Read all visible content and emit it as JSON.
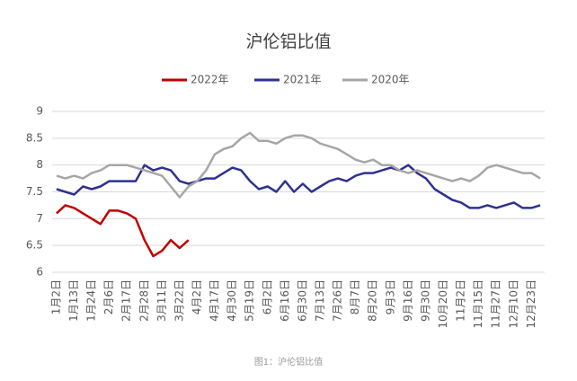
{
  "chart_data": {
    "type": "line",
    "title": "沪伦铝比值",
    "caption": "图1：沪伦铝比值",
    "categories": [
      "1月2日",
      null,
      "1月13日",
      null,
      "1月24日",
      null,
      "2月6日",
      null,
      "2月17日",
      null,
      "2月28日",
      null,
      "3月11日",
      null,
      "3月22日",
      null,
      "4月2日",
      null,
      "4月17日",
      null,
      "4月30日",
      null,
      "5月19日",
      null,
      "6月2日",
      null,
      "6月16日",
      null,
      "6月30日",
      null,
      "7月13日",
      null,
      "7月26日",
      null,
      "8月7日",
      null,
      "8月20日",
      null,
      "9月3日",
      null,
      "9月16日",
      null,
      "9月30日",
      null,
      "10月20日",
      null,
      "11月2日",
      null,
      "11月15日",
      null,
      "11月27日",
      null,
      "12月10日",
      null,
      "12月23日",
      null
    ],
    "series": [
      {
        "name": "2022年",
        "color": "#c00000",
        "values": [
          7.1,
          7.25,
          7.2,
          7.1,
          7.0,
          6.9,
          7.15,
          7.15,
          7.1,
          7.0,
          6.6,
          6.3,
          6.4,
          6.6,
          6.45,
          6.6,
          null,
          null,
          null,
          null,
          null,
          null,
          null,
          null,
          null,
          null,
          null,
          null,
          null,
          null,
          null,
          null,
          null,
          null,
          null,
          null,
          null,
          null,
          null,
          null,
          null,
          null,
          null,
          null,
          null,
          null,
          null,
          null,
          null,
          null,
          null,
          null,
          null,
          null,
          null,
          null
        ]
      },
      {
        "name": "2021年",
        "color": "#2e3192",
        "values": [
          7.55,
          7.5,
          7.45,
          7.6,
          7.55,
          7.6,
          7.7,
          7.7,
          7.7,
          7.7,
          8.0,
          7.9,
          7.95,
          7.9,
          7.7,
          7.65,
          7.7,
          7.75,
          7.75,
          7.85,
          7.95,
          7.9,
          7.7,
          7.55,
          7.6,
          7.5,
          7.7,
          7.5,
          7.65,
          7.5,
          7.6,
          7.7,
          7.75,
          7.7,
          7.8,
          7.85,
          7.85,
          7.9,
          7.95,
          7.9,
          8.0,
          7.85,
          7.75,
          7.55,
          7.45,
          7.35,
          7.3,
          7.2,
          7.2,
          7.25,
          7.2,
          7.25,
          7.3,
          7.2,
          7.2,
          7.25
        ]
      },
      {
        "name": "2020年",
        "color": "#a6a6a6",
        "values": [
          7.8,
          7.75,
          7.8,
          7.75,
          7.85,
          7.9,
          8.0,
          8.0,
          8.0,
          7.95,
          7.9,
          7.85,
          7.8,
          7.6,
          7.4,
          7.6,
          7.7,
          7.9,
          8.2,
          8.3,
          8.35,
          8.5,
          8.6,
          8.45,
          8.45,
          8.4,
          8.5,
          8.55,
          8.55,
          8.5,
          8.4,
          8.35,
          8.3,
          8.2,
          8.1,
          8.05,
          8.1,
          8.0,
          8.0,
          7.9,
          7.85,
          7.9,
          7.85,
          7.8,
          7.75,
          7.7,
          7.75,
          7.7,
          7.8,
          7.95,
          8.0,
          7.95,
          7.9,
          7.85,
          7.85,
          7.75
        ]
      }
    ],
    "ylim": [
      6,
      9
    ],
    "yticks": [
      6,
      6.5,
      7,
      7.5,
      8,
      8.5,
      9
    ],
    "grid": true,
    "legend": "top"
  }
}
